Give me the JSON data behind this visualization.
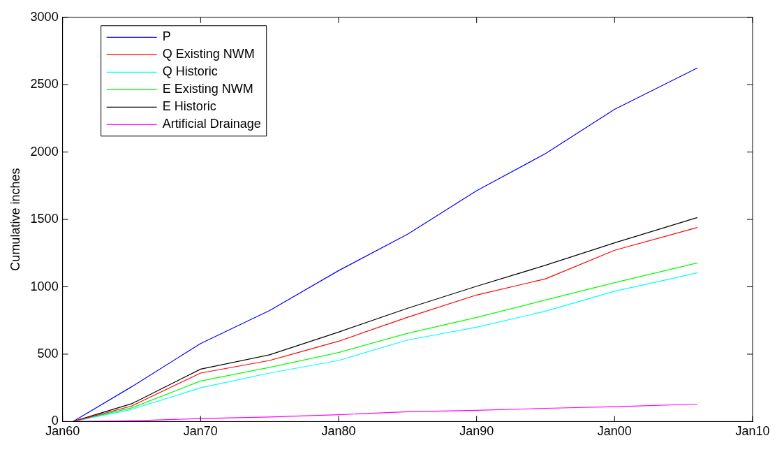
{
  "chart_data": {
    "type": "line",
    "ylabel": "Cumulative inches",
    "x": [
      "1960-10",
      "1965-01",
      "1970-01",
      "1975-01",
      "1980-01",
      "1985-01",
      "1990-01",
      "1995-01",
      "2000-01",
      "2006-01"
    ],
    "series": [
      {
        "name": "P",
        "color": "#0000ff",
        "values": [
          0,
          258,
          579,
          824,
          1120,
          1390,
          1713,
          1989,
          2317,
          2624
        ]
      },
      {
        "name": "Q Existing NWM",
        "color": "#ff0000",
        "values": [
          0,
          115,
          360,
          453,
          596,
          774,
          939,
          1059,
          1271,
          1440
        ]
      },
      {
        "name": "Q Historic",
        "color": "#00ffff",
        "values": [
          0,
          90,
          250,
          360,
          453,
          605,
          700,
          819,
          967,
          1103
        ]
      },
      {
        "name": "E Existing NWM",
        "color": "#00ff00",
        "values": [
          0,
          101,
          301,
          402,
          512,
          655,
          773,
          902,
          1031,
          1177
        ]
      },
      {
        "name": "E Historic",
        "color": "#000000",
        "values": [
          0,
          132,
          389,
          495,
          664,
          841,
          1004,
          1160,
          1326,
          1514
        ]
      },
      {
        "name": "Artificial Drainage",
        "color": "#ff00ff",
        "values": [
          0,
          5,
          22,
          34,
          51,
          73,
          83,
          98,
          110,
          129
        ]
      }
    ],
    "xlim": [
      "1960-01",
      "2010-01"
    ],
    "xticks": [
      {
        "value": "1960-01",
        "label": "Jan60"
      },
      {
        "value": "1970-01",
        "label": "Jan70"
      },
      {
        "value": "1980-01",
        "label": "Jan80"
      },
      {
        "value": "1990-01",
        "label": "Jan90"
      },
      {
        "value": "2000-01",
        "label": "Jan00"
      },
      {
        "value": "2010-01",
        "label": "Jan10"
      }
    ],
    "ylim": [
      0,
      3000
    ],
    "yticks": [
      0,
      500,
      1000,
      1500,
      2000,
      2500,
      3000
    ],
    "grid": false,
    "legend": "top left",
    "marker": "none",
    "line_style": "solid"
  }
}
